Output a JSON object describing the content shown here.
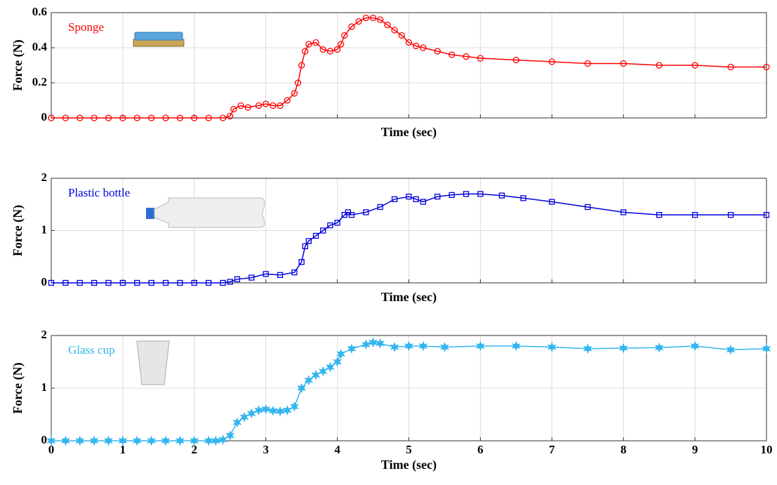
{
  "chart_data": [
    {
      "type": "line",
      "marker": "circle",
      "xlabel": "Time (sec)",
      "ylabel": "Force (N)",
      "xlim": [
        0,
        10
      ],
      "xticks": [
        0,
        1,
        2,
        3,
        4,
        5,
        6,
        7,
        8,
        9,
        10
      ],
      "show_xtick_labels": false,
      "ylim": [
        0,
        0.6
      ],
      "yticks": [
        0,
        0.2,
        0.4,
        0.6
      ],
      "grid": true,
      "x": [
        0,
        0.2,
        0.4,
        0.6,
        0.8,
        1.0,
        1.2,
        1.4,
        1.6,
        1.8,
        2.0,
        2.2,
        2.4,
        2.5,
        2.55,
        2.65,
        2.75,
        2.9,
        3.0,
        3.1,
        3.2,
        3.3,
        3.4,
        3.45,
        3.5,
        3.55,
        3.6,
        3.7,
        3.8,
        3.9,
        4.0,
        4.05,
        4.1,
        4.2,
        4.3,
        4.4,
        4.5,
        4.6,
        4.7,
        4.8,
        4.9,
        5.0,
        5.1,
        5.2,
        5.4,
        5.6,
        5.8,
        6.0,
        6.5,
        7.0,
        7.5,
        8.0,
        8.5,
        9.0,
        9.5,
        10.0
      ],
      "series": [
        {
          "name": "Sponge",
          "color": "#ff0000",
          "values": [
            0,
            0,
            0,
            0,
            0,
            0,
            0,
            0,
            0,
            0,
            0,
            0,
            0,
            0.01,
            0.05,
            0.07,
            0.06,
            0.07,
            0.08,
            0.07,
            0.07,
            0.1,
            0.14,
            0.2,
            0.3,
            0.38,
            0.42,
            0.43,
            0.39,
            0.38,
            0.39,
            0.42,
            0.47,
            0.52,
            0.55,
            0.57,
            0.57,
            0.56,
            0.53,
            0.5,
            0.47,
            0.43,
            0.41,
            0.4,
            0.38,
            0.36,
            0.35,
            0.34,
            0.33,
            0.32,
            0.31,
            0.31,
            0.3,
            0.3,
            0.29,
            0.29
          ]
        }
      ]
    },
    {
      "type": "line",
      "marker": "square",
      "xlabel": "Time (sec)",
      "ylabel": "Force (N)",
      "xlim": [
        0,
        10
      ],
      "xticks": [
        0,
        1,
        2,
        3,
        4,
        5,
        6,
        7,
        8,
        9,
        10
      ],
      "show_xtick_labels": false,
      "ylim": [
        0,
        2
      ],
      "yticks": [
        0,
        1,
        2
      ],
      "grid": true,
      "x": [
        0,
        0.2,
        0.4,
        0.6,
        0.8,
        1.0,
        1.2,
        1.4,
        1.6,
        1.8,
        2.0,
        2.2,
        2.4,
        2.5,
        2.6,
        2.8,
        3.0,
        3.2,
        3.4,
        3.5,
        3.55,
        3.6,
        3.7,
        3.8,
        3.9,
        4.0,
        4.1,
        4.15,
        4.2,
        4.4,
        4.6,
        4.8,
        5.0,
        5.1,
        5.2,
        5.4,
        5.6,
        5.8,
        6.0,
        6.3,
        6.6,
        7.0,
        7.5,
        8.0,
        8.5,
        9.0,
        9.5,
        10.0
      ],
      "series": [
        {
          "name": "Plastic bottle",
          "color": "#0000dd",
          "values": [
            0,
            0,
            0,
            0,
            0,
            0,
            0,
            0,
            0,
            0,
            0,
            0,
            0,
            0.02,
            0.07,
            0.1,
            0.17,
            0.15,
            0.2,
            0.4,
            0.7,
            0.8,
            0.9,
            1.0,
            1.1,
            1.15,
            1.3,
            1.35,
            1.3,
            1.35,
            1.45,
            1.6,
            1.65,
            1.6,
            1.55,
            1.65,
            1.68,
            1.7,
            1.7,
            1.67,
            1.62,
            1.55,
            1.45,
            1.35,
            1.3,
            1.3,
            1.3,
            1.3
          ]
        }
      ]
    },
    {
      "type": "line",
      "marker": "star",
      "xlabel": "Time (sec)",
      "ylabel": "Force (N)",
      "xlim": [
        0,
        10
      ],
      "xticks": [
        0,
        1,
        2,
        3,
        4,
        5,
        6,
        7,
        8,
        9,
        10
      ],
      "show_xtick_labels": true,
      "ylim": [
        0,
        2
      ],
      "yticks": [
        0,
        1,
        2
      ],
      "grid": true,
      "x": [
        0,
        0.2,
        0.4,
        0.6,
        0.8,
        1.0,
        1.2,
        1.4,
        1.6,
        1.8,
        2.0,
        2.2,
        2.3,
        2.4,
        2.5,
        2.6,
        2.7,
        2.8,
        2.9,
        3.0,
        3.1,
        3.2,
        3.3,
        3.4,
        3.5,
        3.6,
        3.7,
        3.8,
        3.9,
        4.0,
        4.05,
        4.2,
        4.4,
        4.5,
        4.6,
        4.8,
        5.0,
        5.2,
        5.5,
        6.0,
        6.5,
        7.0,
        7.5,
        8.0,
        8.5,
        9.0,
        9.5,
        10.0
      ],
      "series": [
        {
          "name": "Glass cup",
          "color": "#33b5ee",
          "values": [
            0,
            0,
            0,
            0,
            0,
            0,
            0,
            0,
            0,
            0,
            0,
            0,
            0,
            0.02,
            0.1,
            0.35,
            0.45,
            0.52,
            0.58,
            0.6,
            0.57,
            0.56,
            0.58,
            0.65,
            1.0,
            1.15,
            1.25,
            1.32,
            1.4,
            1.5,
            1.65,
            1.75,
            1.83,
            1.87,
            1.85,
            1.78,
            1.8,
            1.8,
            1.78,
            1.8,
            1.8,
            1.78,
            1.75,
            1.76,
            1.77,
            1.8,
            1.73,
            1.75
          ]
        }
      ]
    }
  ]
}
